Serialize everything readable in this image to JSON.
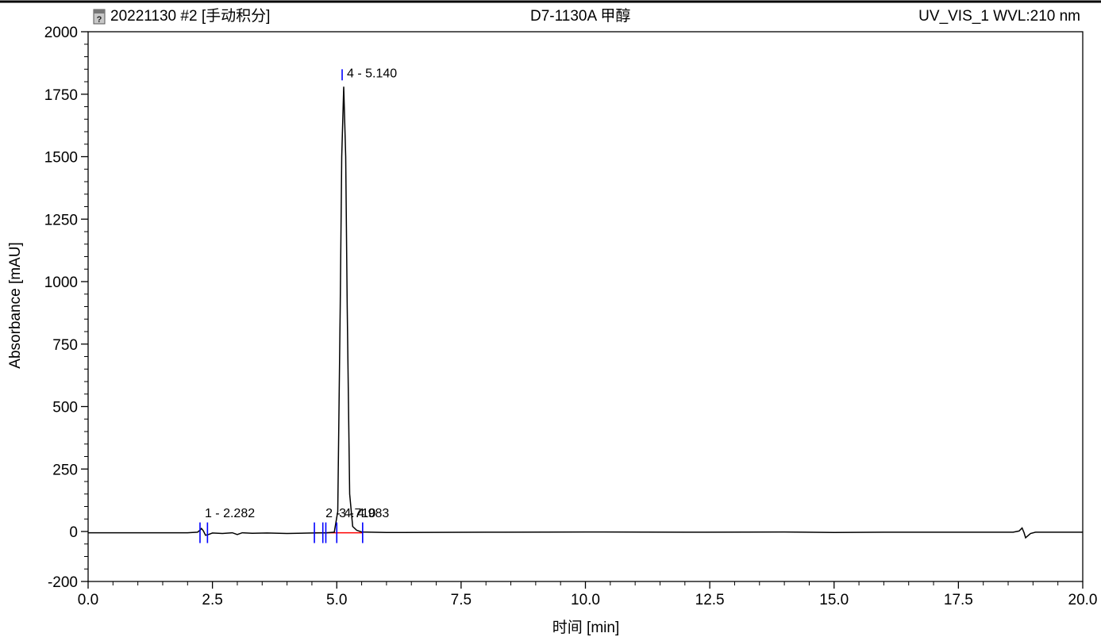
{
  "header": {
    "left_title": "20221130 #2 [手动积分]",
    "center_title": "D7-1130A 甲醇",
    "right_title": "UV_VIS_1 WVL:210 nm",
    "icon": "file-question-icon"
  },
  "chart_data": {
    "type": "line",
    "xlabel": "时间 [min]",
    "ylabel": "Absorbance [mAU]",
    "xlim": [
      0.0,
      20.0
    ],
    "ylim": [
      -200,
      2000
    ],
    "x_ticks": [
      "0.0",
      "2.5",
      "5.0",
      "7.5",
      "10.0",
      "12.5",
      "15.0",
      "17.5",
      "20.0"
    ],
    "y_ticks": [
      "-200",
      "0",
      "250",
      "500",
      "750",
      "1000",
      "1250",
      "1500",
      "1750",
      "2000"
    ],
    "x_tick_values": [
      0.0,
      2.5,
      5.0,
      7.5,
      10.0,
      12.5,
      15.0,
      17.5,
      20.0
    ],
    "y_tick_values": [
      -200,
      0,
      250,
      500,
      750,
      1000,
      1250,
      1500,
      1750,
      2000
    ],
    "series": [
      {
        "color": "#000000",
        "x": [
          0.0,
          2.0,
          2.2,
          2.25,
          2.28,
          2.32,
          2.36,
          2.42,
          2.5,
          2.7,
          2.9,
          3.0,
          3.1,
          3.3,
          3.6,
          4.0,
          4.5,
          4.8,
          4.95,
          5.02,
          5.07,
          5.1,
          5.14,
          5.18,
          5.21,
          5.26,
          5.32,
          5.4,
          5.5,
          6.0,
          8.0,
          10.0,
          12.0,
          14.0,
          15.0,
          16.0,
          17.0,
          18.0,
          18.6,
          18.72,
          18.78,
          18.82,
          18.85,
          18.88,
          18.95,
          19.05,
          19.2,
          19.5,
          20.0
        ],
        "y": [
          -5,
          -5,
          -3,
          5,
          12,
          2,
          -15,
          -12,
          -6,
          -8,
          -5,
          -12,
          -5,
          -7,
          -6,
          -8,
          -6,
          -5,
          -3,
          80,
          900,
          1500,
          1780,
          1500,
          900,
          150,
          20,
          5,
          -2,
          -4,
          -3,
          -2,
          -3,
          -2,
          -4,
          -3,
          -3,
          -3,
          -3,
          2,
          14,
          -5,
          -25,
          -20,
          -8,
          -3,
          -3,
          -3,
          -3
        ]
      }
    ],
    "peaks": [
      {
        "label": "1 - 2.282",
        "rt": 2.282,
        "y": 12
      },
      {
        "label": "2 - 4.710",
        "rt": 4.71,
        "y": -5
      },
      {
        "label": "3 - 4.983",
        "rt": 4.983,
        "y": -3
      },
      {
        "label": "4 - 5.140",
        "rt": 5.14,
        "y": 1780
      }
    ],
    "integration_markers_x": [
      2.25,
      2.4,
      4.55,
      4.72,
      4.78,
      5.0,
      5.52
    ],
    "baseline_segments": [
      [
        4.55,
        5.52
      ]
    ],
    "colors": {
      "trace": "#000000",
      "marker": "#0000ff",
      "baseline": "#ff0000",
      "axis": "#000000"
    }
  }
}
